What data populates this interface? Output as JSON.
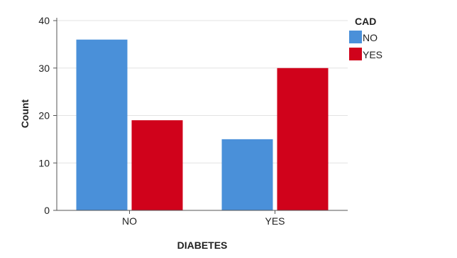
{
  "chart_data": {
    "type": "bar",
    "categories": [
      "NO",
      "YES"
    ],
    "series": [
      {
        "name": "NO",
        "values": [
          36,
          15
        ],
        "color": "#4a90d9"
      },
      {
        "name": "YES",
        "values": [
          19,
          30
        ],
        "color": "#d0021b"
      }
    ],
    "title": "",
    "xlabel": "DIABETES",
    "ylabel": "Count",
    "ylim": [
      0,
      40
    ],
    "yticks": [
      0,
      10,
      20,
      30,
      40
    ],
    "grid": true,
    "legend": {
      "title": "CAD",
      "placement": "right"
    }
  }
}
